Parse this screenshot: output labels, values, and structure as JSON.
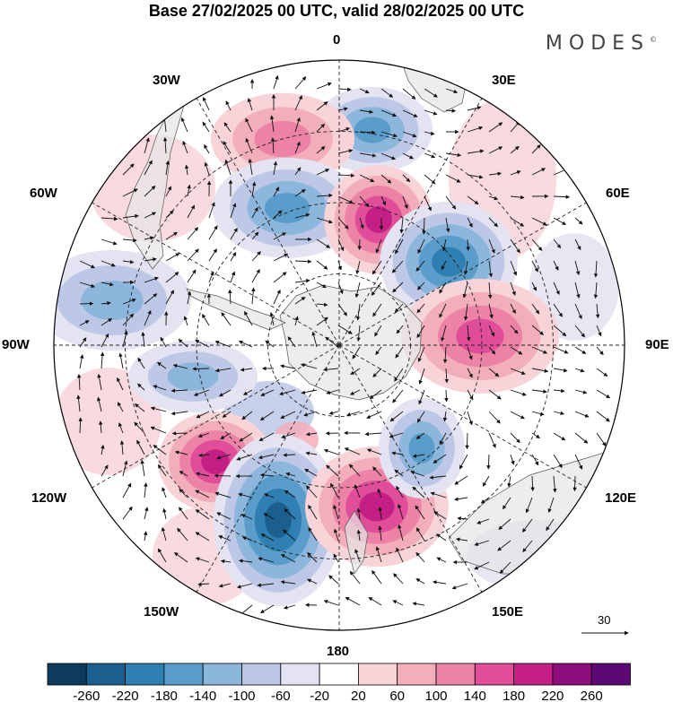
{
  "title": "Base 27/02/2025 00 UTC, valid 28/02/2025 00 UTC",
  "logo": "MODES",
  "logo_mark": "©",
  "meridian_labels": {
    "m0": "0",
    "m30e": "30E",
    "m60e": "60E",
    "m90e": "90E",
    "m120e": "120E",
    "m150e": "150E",
    "m180": "180",
    "m150w": "150W",
    "m120w": "120W",
    "m90w": "90W",
    "m60w": "60W",
    "m30w": "30W"
  },
  "vector_reference": "30",
  "colorbar": {
    "ticks": [
      "-260",
      "-220",
      "-180",
      "-140",
      "-100",
      "-60",
      "-20",
      "20",
      "60",
      "100",
      "140",
      "180",
      "220",
      "260"
    ],
    "colors": [
      "#0e3a5e",
      "#1a5f8e",
      "#2f7fb2",
      "#5a9dcb",
      "#8db6dc",
      "#bcc8e6",
      "#e3e3f1",
      "#ffffff",
      "#f8d4d8",
      "#f3aebb",
      "#ec82a5",
      "#e04e99",
      "#c31f85",
      "#8e0c7c",
      "#5b0a73"
    ]
  },
  "anomaly_cells": [
    {
      "sign": "neg",
      "level": 3
    },
    {
      "sign": "pos",
      "level": 2
    },
    {
      "sign": "neg",
      "level": 3
    },
    {
      "sign": "pos",
      "level": 4
    },
    {
      "sign": "neg",
      "level": 4
    },
    {
      "sign": "pos",
      "level": 3
    },
    {
      "sign": "neg",
      "level": 2
    },
    {
      "sign": "pos",
      "level": 4
    },
    {
      "sign": "neg",
      "level": 5
    },
    {
      "sign": "pos",
      "level": 4
    },
    {
      "sign": "neg",
      "level": 3
    },
    {
      "sign": "neg",
      "level": 2
    }
  ]
}
